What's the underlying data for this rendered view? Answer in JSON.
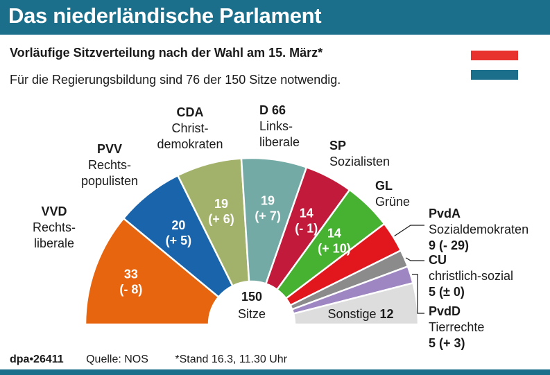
{
  "header": {
    "title": "Das niederländische Parlament"
  },
  "subtitle": "Vorläufige Sitzverteilung nach der Wahl am 15. März*",
  "note": "Für die Regierungsbildung sind 76 der 150 Sitze notwendig.",
  "flag_colors": [
    "#e8322e",
    "#ffffff",
    "#1b6f8b"
  ],
  "center": {
    "total": "150",
    "label": "Sitze"
  },
  "footer": {
    "brand": "dpa•26411",
    "source": "Quelle: NOS",
    "stand": "*Stand 16.3, 11.30 Uhr"
  },
  "chart_data": {
    "type": "pie",
    "title": "Vorläufige Sitzverteilung nach der Wahl am 15. März*",
    "total": 150,
    "series": [
      {
        "party": "VVD",
        "desc": "Rechts-\nliberale",
        "seats": 33,
        "change": "(- 8)",
        "color": "#e8650f"
      },
      {
        "party": "PVV",
        "desc": "Rechts-\npopulisten",
        "seats": 20,
        "change": "(+ 5)",
        "color": "#1a64ab"
      },
      {
        "party": "CDA",
        "desc": "Christ-\ndemokraten",
        "seats": 19,
        "change": "(+ 6)",
        "color": "#a3b26a"
      },
      {
        "party": "D 66",
        "desc": "Links-\nliberale",
        "seats": 19,
        "change": "(+ 7)",
        "color": "#74aaa5"
      },
      {
        "party": "SP",
        "desc": "Sozialisten",
        "seats": 14,
        "change": "(- 1)",
        "color": "#c11a3a"
      },
      {
        "party": "GL",
        "desc": "Grüne",
        "seats": 14,
        "change": "(+ 10)",
        "color": "#47b132"
      },
      {
        "party": "PvdA",
        "desc": "Sozialdemokraten",
        "seats": 9,
        "change": "(- 29)",
        "color": "#e2171e"
      },
      {
        "party": "CU",
        "desc": "christlich-sozial",
        "seats": 5,
        "change": "(± 0)",
        "color": "#8b8b8b"
      },
      {
        "party": "PvdD",
        "desc": "Tierrechte",
        "seats": 5,
        "change": "(+ 3)",
        "color": "#9d86c1"
      },
      {
        "party": "Sonstige",
        "desc": "",
        "seats": 12,
        "change": "",
        "color": "#dddddd"
      }
    ]
  }
}
